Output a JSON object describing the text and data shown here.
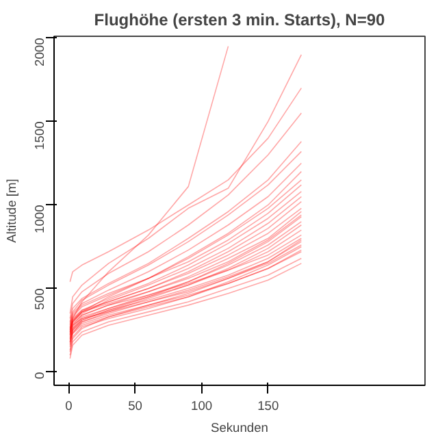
{
  "chart_data": {
    "type": "line",
    "title": "Flughöhe (ersten 3 min. Starts), N=90",
    "xlabel": "Sekunden",
    "ylabel": "Altitude [m]",
    "x": [
      1,
      3,
      10,
      30,
      60,
      90,
      120,
      150,
      175
    ],
    "xlim": [
      -11,
      268
    ],
    "xticks": [
      0,
      50,
      100,
      150
    ],
    "ylim": [
      -80,
      2010
    ],
    "yticks": [
      0,
      500,
      1000,
      1500,
      2000
    ],
    "grid": false,
    "series": [
      {
        "color": "#ff0000",
        "values": [
          120,
          200,
          260,
          330,
          400,
          470,
          560,
          650,
          760
        ]
      },
      {
        "color": "#ff0000",
        "values": [
          150,
          230,
          300,
          360,
          440,
          520,
          610,
          720,
          850
        ]
      },
      {
        "color": "#ff0000",
        "values": [
          180,
          260,
          320,
          380,
          460,
          540,
          640,
          760,
          900
        ]
      },
      {
        "color": "#ff0000",
        "values": [
          200,
          280,
          340,
          400,
          480,
          570,
          680,
          800,
          960
        ]
      },
      {
        "color": "#ff0000",
        "values": [
          220,
          300,
          360,
          420,
          500,
          600,
          720,
          860,
          1020
        ]
      },
      {
        "color": "#ff0000",
        "values": [
          240,
          310,
          370,
          440,
          530,
          640,
          770,
          920,
          1080
        ]
      },
      {
        "color": "#ff0000",
        "values": [
          260,
          330,
          390,
          460,
          560,
          680,
          820,
          980,
          1150
        ]
      },
      {
        "color": "#ff0000",
        "values": [
          280,
          350,
          410,
          490,
          600,
          730,
          880,
          1050,
          1250
        ]
      },
      {
        "color": "#ff0000",
        "values": [
          300,
          380,
          440,
          530,
          650,
          800,
          960,
          1150,
          1380
        ]
      },
      {
        "color": "#ff0000",
        "values": [
          320,
          410,
          480,
          590,
          720,
          880,
          1060,
          1300,
          1550
        ]
      },
      {
        "color": "#ff0000",
        "values": [
          540,
          600,
          640,
          720,
          850,
          1000,
          1150,
          1400,
          1700
        ]
      },
      {
        "color": "#ff0000",
        "values": [
          350,
          450,
          520,
          650,
          800,
          980,
          1100,
          1500,
          1900
        ]
      },
      {
        "color": "#ff0000",
        "values": [
          250,
          320,
          420,
          600,
          820,
          1110,
          1950,
          null,
          null
        ]
      },
      {
        "color": "#ff0000",
        "values": [
          100,
          180,
          240,
          300,
          360,
          420,
          500,
          580,
          680
        ]
      },
      {
        "color": "#ff0000",
        "values": [
          80,
          160,
          220,
          280,
          340,
          400,
          470,
          550,
          650
        ]
      },
      {
        "color": "#ff0000",
        "values": [
          200,
          260,
          310,
          370,
          430,
          500,
          580,
          680,
          800
        ]
      },
      {
        "color": "#ff0000",
        "values": [
          230,
          290,
          340,
          400,
          460,
          530,
          610,
          700,
          820
        ]
      },
      {
        "color": "#ff0000",
        "values": [
          170,
          250,
          300,
          350,
          420,
          490,
          570,
          660,
          780
        ]
      },
      {
        "color": "#ff0000",
        "values": [
          210,
          270,
          330,
          380,
          450,
          520,
          620,
          740,
          880
        ]
      },
      {
        "color": "#ff0000",
        "values": [
          260,
          320,
          370,
          420,
          500,
          590,
          700,
          830,
          980
        ]
      },
      {
        "color": "#ff0000",
        "values": [
          190,
          240,
          290,
          340,
          400,
          460,
          530,
          620,
          720
        ]
      },
      {
        "color": "#ff0000",
        "values": [
          240,
          300,
          350,
          430,
          520,
          620,
          740,
          890,
          1050
        ]
      },
      {
        "color": "#ff0000",
        "values": [
          270,
          340,
          400,
          470,
          560,
          660,
          790,
          950,
          1120
        ]
      },
      {
        "color": "#ff0000",
        "values": [
          160,
          230,
          280,
          330,
          390,
          450,
          540,
          640,
          750
        ]
      },
      {
        "color": "#ff0000",
        "values": [
          230,
          300,
          360,
          450,
          560,
          690,
          830,
          1000,
          1200
        ]
      },
      {
        "color": "#ff0000",
        "values": [
          290,
          360,
          430,
          520,
          640,
          780,
          940,
          1120,
          1320
        ]
      },
      {
        "color": "#ff0000",
        "values": [
          180,
          250,
          310,
          370,
          450,
          540,
          650,
          780,
          930
        ]
      },
      {
        "color": "#ff0000",
        "values": [
          220,
          280,
          320,
          360,
          420,
          480,
          560,
          660,
          790
        ]
      },
      {
        "color": "#ff0000",
        "values": [
          250,
          310,
          360,
          410,
          480,
          560,
          660,
          790,
          940
        ]
      },
      {
        "color": "#ff0000",
        "values": [
          130,
          210,
          270,
          320,
          380,
          450,
          530,
          620,
          730
        ]
      }
    ]
  }
}
